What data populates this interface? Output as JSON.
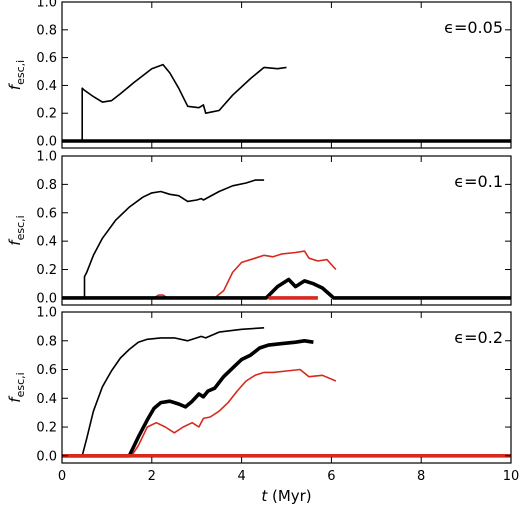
{
  "chart_data": [
    {
      "type": "line",
      "annotation": "ϵ=0.05",
      "ylabel": "f_esc,i",
      "xlim": [
        0,
        10
      ],
      "ylim": [
        -0.05,
        1.0
      ],
      "yticks": [
        "0.0",
        "0.2",
        "0.4",
        "0.6",
        "0.8",
        "1.0"
      ],
      "series": [
        {
          "color": "#000000",
          "weight": "thin",
          "x": [
            0.45,
            0.45,
            0.48,
            0.7,
            0.9,
            1.1,
            1.3,
            1.6,
            2.0,
            2.25,
            2.4,
            2.6,
            2.8,
            3.05,
            3.15,
            3.2,
            3.35,
            3.5,
            3.8,
            4.2,
            4.5,
            4.8,
            5.0
          ],
          "y": [
            0.0,
            0.38,
            0.37,
            0.32,
            0.28,
            0.29,
            0.34,
            0.42,
            0.52,
            0.55,
            0.49,
            0.38,
            0.25,
            0.24,
            0.26,
            0.2,
            0.21,
            0.22,
            0.33,
            0.45,
            0.53,
            0.52,
            0.53
          ]
        },
        {
          "color": "#000000",
          "weight": "thick",
          "x": [
            0,
            10
          ],
          "y": [
            0.0,
            0.0
          ]
        }
      ]
    },
    {
      "type": "line",
      "annotation": "ϵ=0.1",
      "ylabel": "f_esc,i",
      "xlim": [
        0,
        10
      ],
      "ylim": [
        -0.05,
        1.0
      ],
      "yticks": [
        "0.0",
        "0.2",
        "0.4",
        "0.6",
        "0.8",
        "1.0"
      ],
      "series": [
        {
          "color": "#000000",
          "weight": "thin",
          "x": [
            0.5,
            0.5,
            0.55,
            0.7,
            0.9,
            1.2,
            1.5,
            1.8,
            2.0,
            2.2,
            2.4,
            2.6,
            2.8,
            3.0,
            3.1,
            3.15,
            3.5,
            3.8,
            4.1,
            4.3,
            4.5
          ],
          "y": [
            0.0,
            0.15,
            0.18,
            0.3,
            0.42,
            0.55,
            0.64,
            0.71,
            0.74,
            0.75,
            0.73,
            0.72,
            0.68,
            0.69,
            0.7,
            0.69,
            0.75,
            0.79,
            0.81,
            0.83,
            0.83
          ]
        },
        {
          "color": "#d62a1e",
          "weight": "thin",
          "x": [
            0,
            2.05,
            2.15,
            2.25,
            2.35,
            3.4,
            3.6,
            3.8,
            4.0,
            4.3,
            4.5,
            4.7,
            4.9,
            5.2,
            5.4,
            5.5,
            5.7,
            5.9,
            6.1
          ],
          "y": [
            0.0,
            0.0,
            0.02,
            0.02,
            0.0,
            0.0,
            0.05,
            0.18,
            0.25,
            0.28,
            0.3,
            0.29,
            0.31,
            0.32,
            0.33,
            0.28,
            0.26,
            0.27,
            0.2
          ]
        },
        {
          "color": "#000000",
          "weight": "thick",
          "x": [
            0,
            4.55,
            4.8,
            5.05,
            5.2,
            5.4,
            5.6,
            5.8,
            6.05,
            6.2,
            10
          ],
          "y": [
            0.0,
            0.0,
            0.08,
            0.13,
            0.08,
            0.12,
            0.1,
            0.07,
            0.0,
            0.0,
            0.0
          ]
        },
        {
          "color": "#d62a1e",
          "weight": "thick",
          "x": [
            4.6,
            5.7
          ],
          "y": [
            0.0,
            0.0
          ]
        }
      ]
    },
    {
      "type": "line",
      "annotation": "ϵ=0.2",
      "xlabel": "t (Myr)",
      "ylabel": "f_esc,i",
      "xlim": [
        0,
        10
      ],
      "ylim": [
        -0.05,
        1.0
      ],
      "xticks": [
        "0",
        "2",
        "4",
        "6",
        "8",
        "10"
      ],
      "yticks": [
        "0.0",
        "0.2",
        "0.4",
        "0.6",
        "0.8",
        "1.0"
      ],
      "series": [
        {
          "color": "#000000",
          "weight": "thin",
          "x": [
            0.45,
            0.55,
            0.7,
            0.9,
            1.1,
            1.3,
            1.5,
            1.7,
            1.9,
            2.2,
            2.5,
            2.8,
            3.0,
            3.1,
            3.2,
            3.5,
            4.0,
            4.5
          ],
          "y": [
            0.0,
            0.12,
            0.31,
            0.48,
            0.59,
            0.68,
            0.74,
            0.79,
            0.81,
            0.82,
            0.82,
            0.8,
            0.82,
            0.83,
            0.82,
            0.86,
            0.88,
            0.89
          ]
        },
        {
          "color": "#000000",
          "weight": "thick",
          "x": [
            0,
            1.5,
            1.7,
            1.9,
            2.05,
            2.2,
            2.4,
            2.6,
            2.75,
            2.9,
            3.05,
            3.15,
            3.25,
            3.4,
            3.6,
            3.8,
            4.0,
            4.2,
            4.4,
            4.6,
            4.9,
            5.2,
            5.4,
            5.6
          ],
          "y": [
            0.0,
            0.0,
            0.13,
            0.25,
            0.33,
            0.37,
            0.38,
            0.36,
            0.34,
            0.38,
            0.43,
            0.41,
            0.45,
            0.47,
            0.55,
            0.61,
            0.67,
            0.7,
            0.75,
            0.77,
            0.78,
            0.79,
            0.8,
            0.79
          ]
        },
        {
          "color": "#d62a1e",
          "weight": "thin",
          "x": [
            0,
            1.55,
            1.7,
            1.9,
            2.1,
            2.3,
            2.5,
            2.7,
            2.9,
            3.05,
            3.15,
            3.3,
            3.5,
            3.7,
            3.9,
            4.1,
            4.3,
            4.5,
            4.7,
            5.0,
            5.3,
            5.5,
            5.8,
            6.1
          ],
          "y": [
            0.0,
            0.0,
            0.07,
            0.2,
            0.23,
            0.2,
            0.16,
            0.2,
            0.23,
            0.2,
            0.26,
            0.27,
            0.31,
            0.37,
            0.45,
            0.52,
            0.56,
            0.58,
            0.58,
            0.59,
            0.6,
            0.55,
            0.56,
            0.52
          ]
        },
        {
          "color": "#d62a1e",
          "weight": "thick",
          "x": [
            0,
            10
          ],
          "y": [
            0.0,
            0.0
          ]
        }
      ]
    }
  ]
}
